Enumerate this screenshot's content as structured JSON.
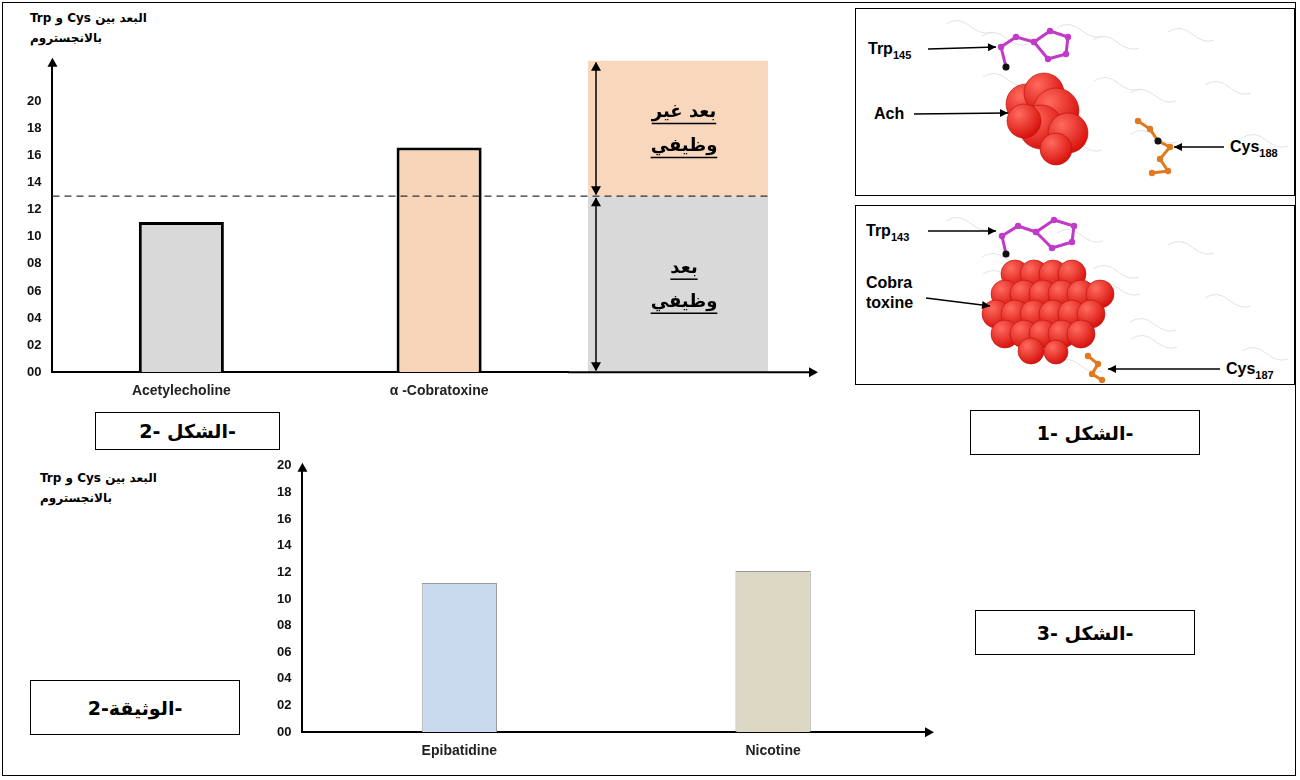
{
  "document_label": "الوثيقة-2-",
  "figure_1": {
    "label": "الشكل -1-",
    "panels": [
      {
        "labels": [
          "Trp145",
          "Ach",
          "Cys188"
        ]
      },
      {
        "labels": [
          "Trp143",
          "Cobra toxine",
          "Cys187"
        ]
      }
    ]
  },
  "chart_data": [
    {
      "type": "bar",
      "figure_label": "الشكل -2-",
      "y_label": "البعد بين Cys و Trp بالانجستروم",
      "categories": [
        "Acetylecholine",
        "α -Cobratoxine"
      ],
      "values": [
        11.1,
        16.6
      ],
      "colors": [
        "#d9d9d9",
        "#f8d5b8"
      ],
      "ylim": [
        0,
        23
      ],
      "yticks": [
        {
          "value": 0,
          "label": "00"
        },
        {
          "value": 2,
          "label": "02"
        },
        {
          "value": 4,
          "label": "04"
        },
        {
          "value": 6,
          "label": "06"
        },
        {
          "value": 8,
          "label": "08"
        },
        10,
        12,
        14,
        16,
        18,
        20
      ],
      "grid": false,
      "threshold": 13,
      "regions": [
        {
          "label": "بعد غير وظيفي",
          "from": 13,
          "to": 23,
          "color": "#f9d7bd"
        },
        {
          "label": "بعد وظيفي",
          "from": 0,
          "to": 13,
          "color": "#d9d9d9"
        }
      ]
    },
    {
      "type": "bar",
      "figure_label": "الشكل -3-",
      "y_label": "البعد بين Cys و Trp بالانجستروم",
      "categories": [
        "Epibatidine",
        "Nicotine"
      ],
      "values": [
        11.2,
        12.1
      ],
      "colors": [
        "#c9d9ee",
        "#ddd8c4"
      ],
      "ylim": [
        0,
        20
      ],
      "yticks": [
        {
          "value": 0,
          "label": "00"
        },
        {
          "value": 2,
          "label": "02"
        },
        {
          "value": 4,
          "label": "04"
        },
        {
          "value": 6,
          "label": "06"
        },
        {
          "value": 8,
          "label": "08"
        },
        10,
        12,
        14,
        16,
        18,
        20
      ],
      "grid": false
    }
  ]
}
